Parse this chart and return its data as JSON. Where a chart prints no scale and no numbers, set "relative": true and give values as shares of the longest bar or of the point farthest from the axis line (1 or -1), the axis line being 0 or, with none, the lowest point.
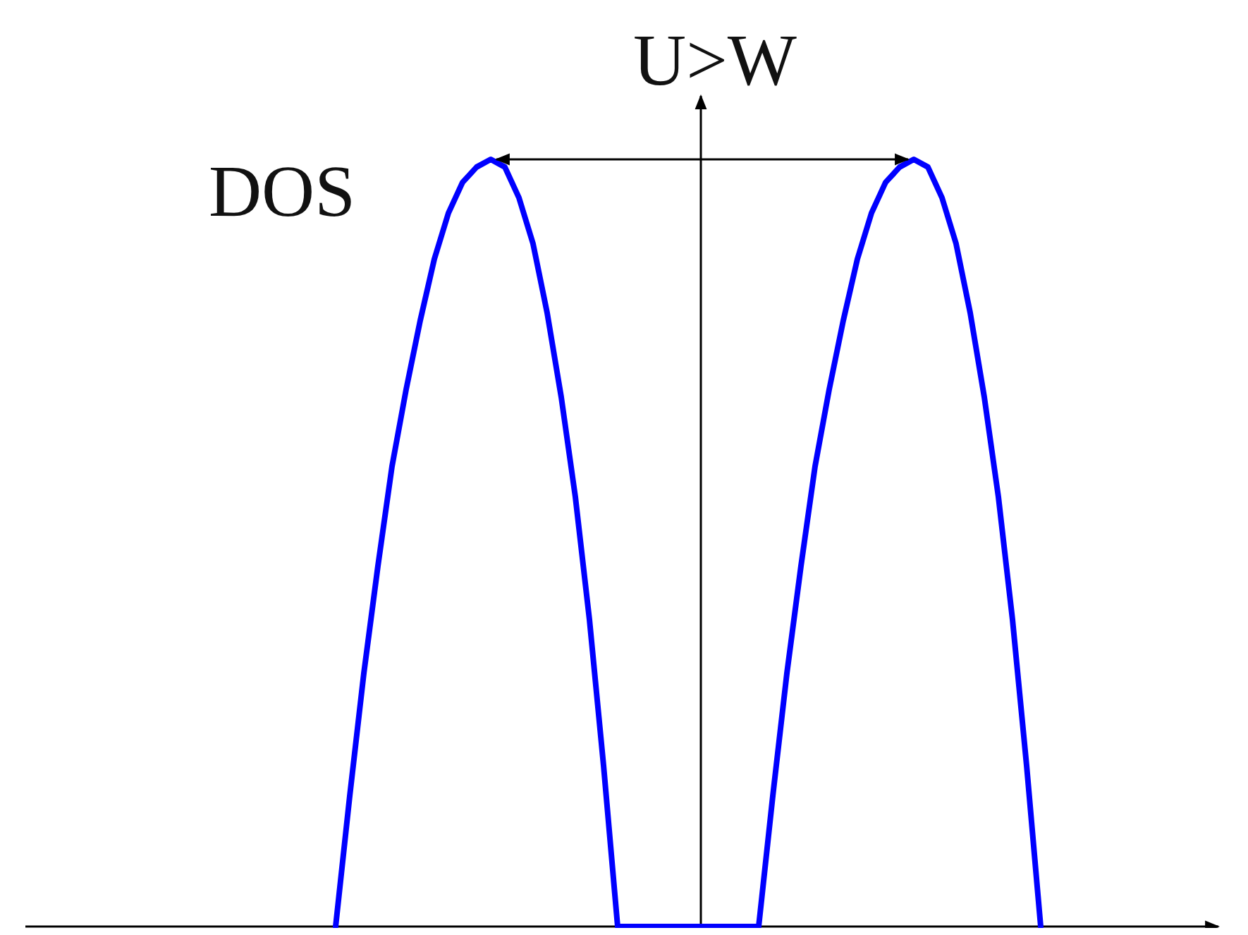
{
  "chart_data": {
    "type": "line",
    "relative": true,
    "ylabel": "DOS",
    "annotations": [
      "U>W"
    ],
    "categories": [
      null,
      null,
      null,
      null,
      null,
      null,
      null,
      null,
      null,
      null,
      null,
      null,
      null,
      null,
      null,
      null,
      null,
      null,
      null,
      null,
      null,
      null,
      null,
      null,
      null,
      null,
      null,
      null,
      null,
      null,
      null,
      null,
      null,
      null,
      null,
      null,
      null,
      null,
      null,
      null,
      null,
      null,
      null,
      null,
      null,
      null,
      null,
      null,
      null,
      null,
      null
    ],
    "series": [
      {
        "color": "#0000ff",
        "values": [
          0,
          0.17,
          0.33,
          0.47,
          0.6,
          0.7,
          0.79,
          0.87,
          0.93,
          0.97,
          0.99,
          1,
          0.99,
          0.95,
          0.89,
          0.8,
          0.69,
          0.56,
          0.4,
          0.21,
          0,
          0,
          0,
          0,
          0,
          0,
          0,
          0,
          0,
          0,
          0,
          0.17,
          0.33,
          0.47,
          0.6,
          0.7,
          0.79,
          0.87,
          0.93,
          0.97,
          0.99,
          1,
          0.99,
          0.95,
          0.89,
          0.8,
          0.69,
          0.56,
          0.4,
          0.21,
          0
        ]
      }
    ]
  }
}
